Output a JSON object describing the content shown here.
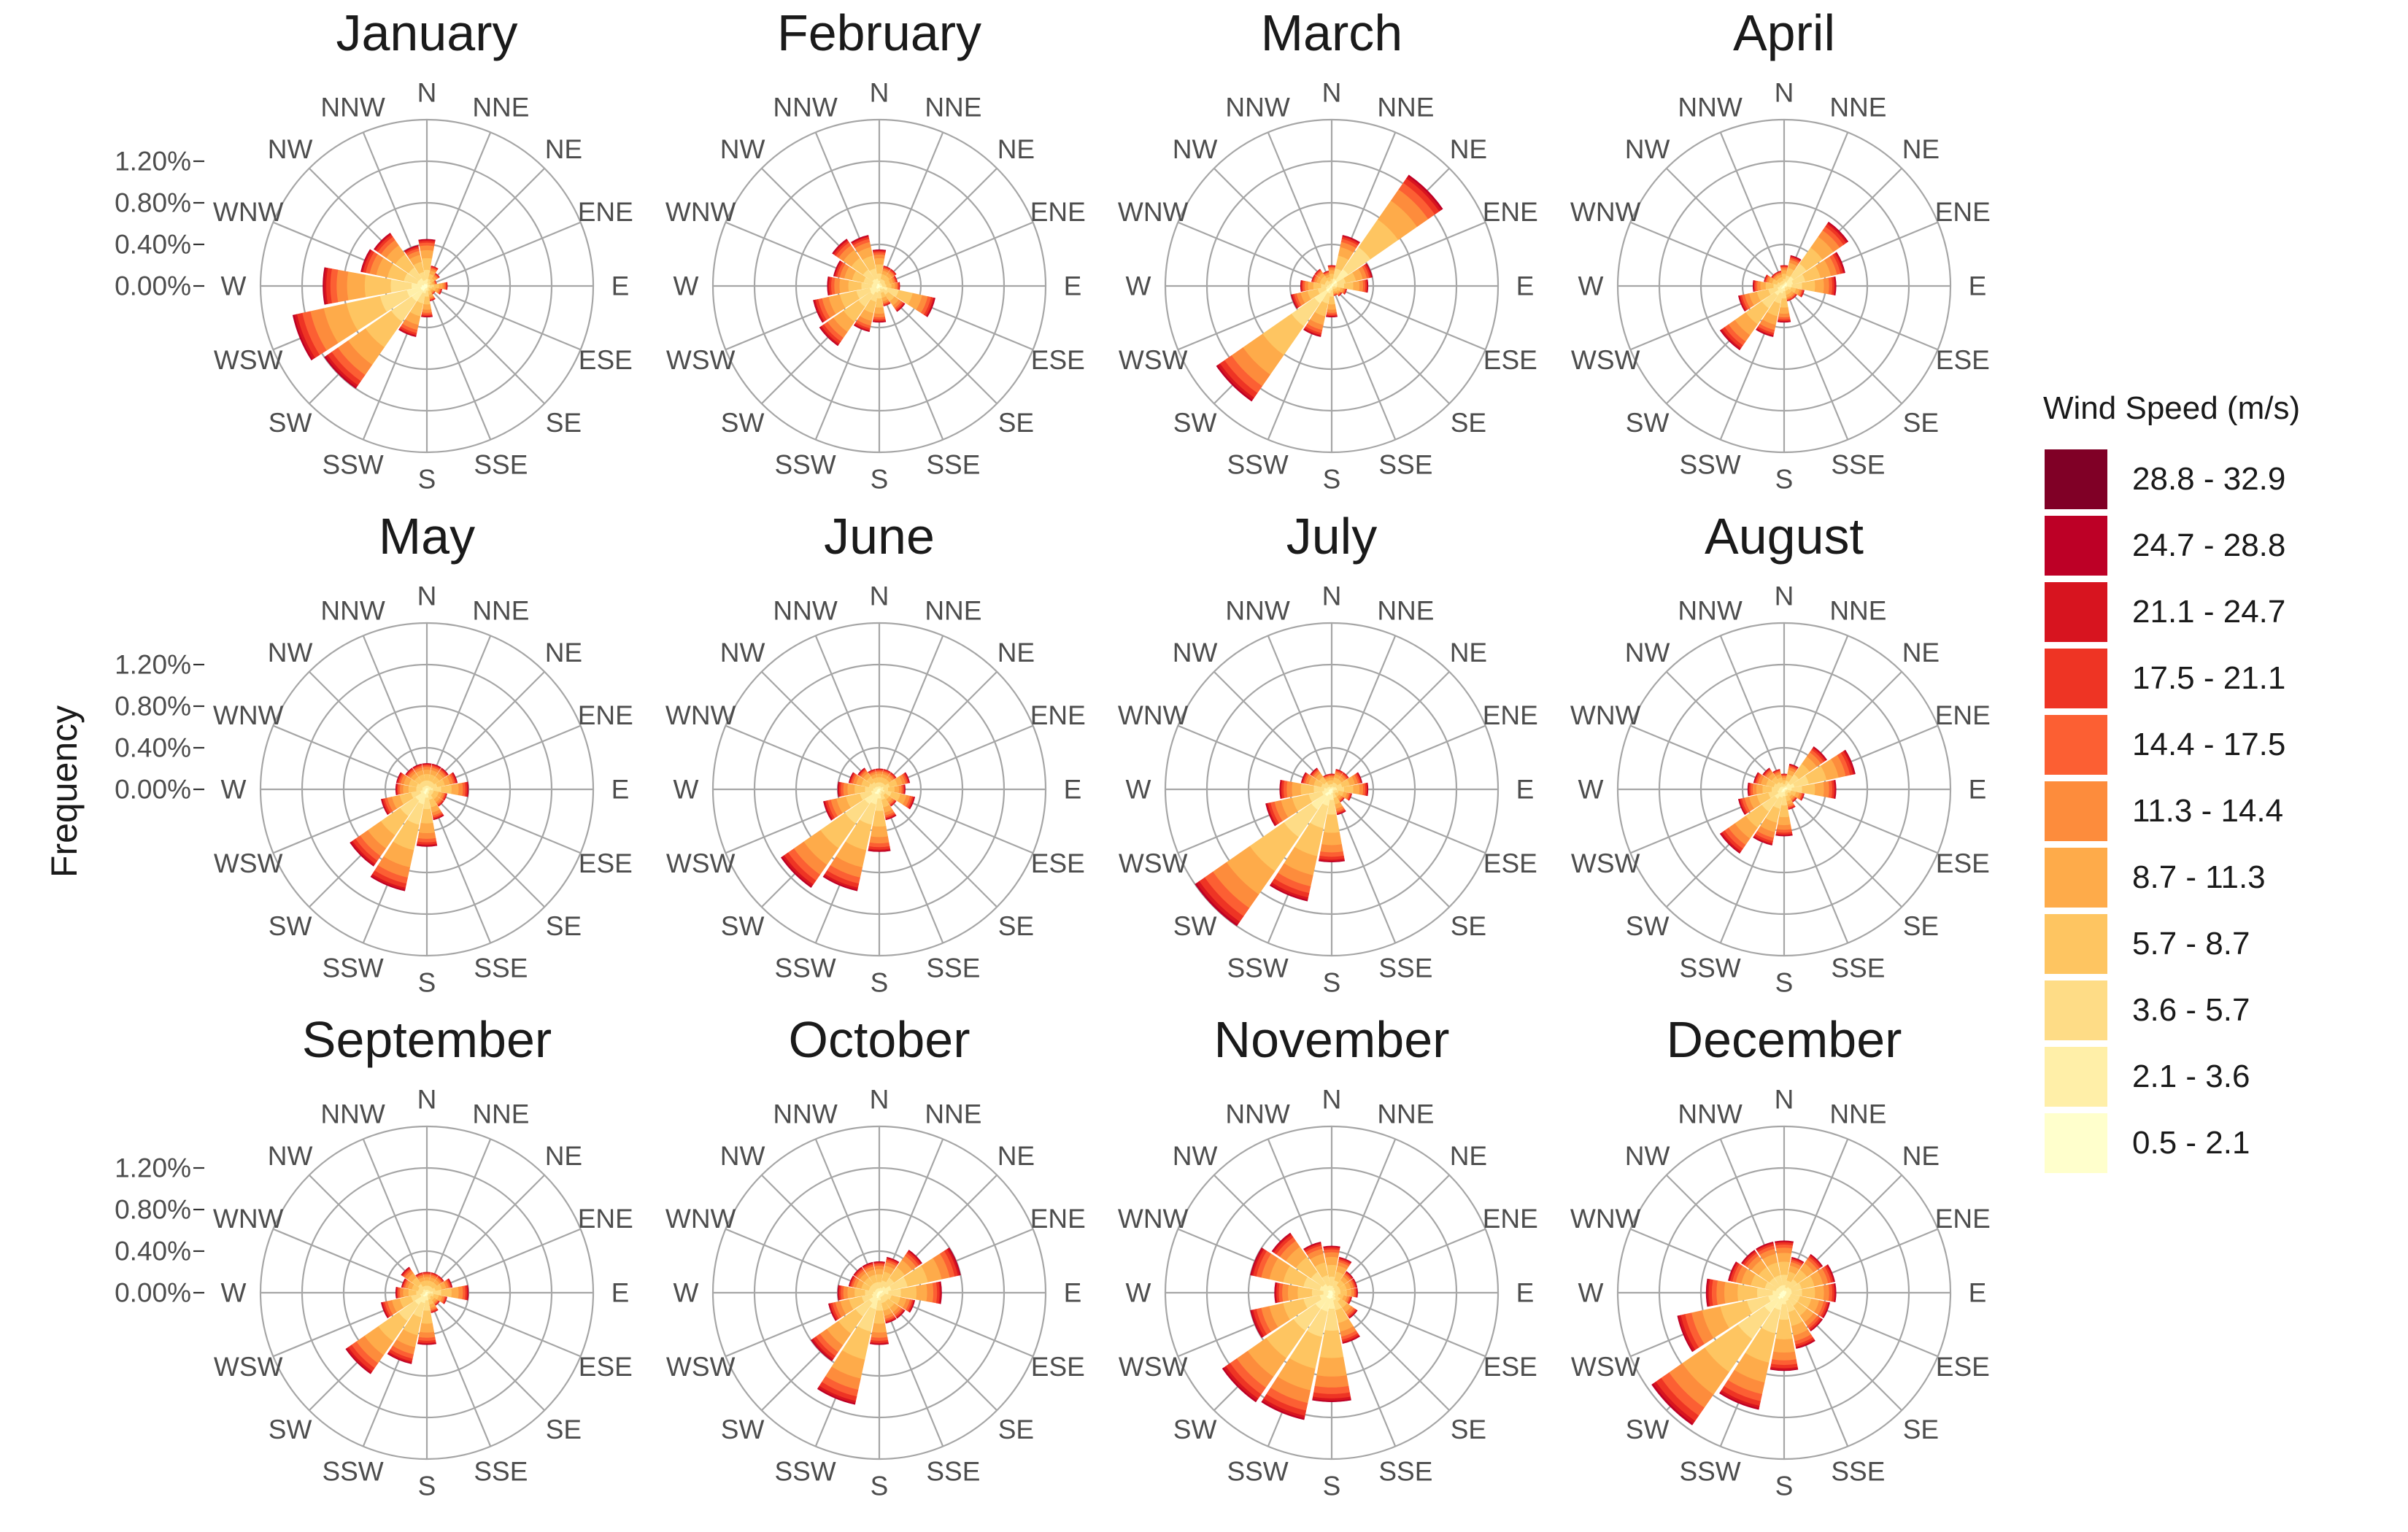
{
  "y_axis_title": "Frequency",
  "legend": {
    "title": "Wind Speed (m/s)",
    "bins": [
      {
        "label": "28.8 - 32.9",
        "color": "#800026"
      },
      {
        "label": "24.7 - 28.8",
        "color": "#bd0026"
      },
      {
        "label": "21.1 - 24.7",
        "color": "#d7141f"
      },
      {
        "label": "17.5 - 21.1",
        "color": "#ee3424"
      },
      {
        "label": "14.4 - 17.5",
        "color": "#fc5f33"
      },
      {
        "label": "11.3 - 14.4",
        "color": "#fd8c3c"
      },
      {
        "label": "8.7 - 11.3",
        "color": "#feab4a"
      },
      {
        "label": "5.7 - 8.7",
        "color": "#fec561"
      },
      {
        "label": "3.6 - 5.7",
        "color": "#fedc86"
      },
      {
        "label": "2.1 - 3.6",
        "color": "#ffefa8"
      },
      {
        "label": "0.5 - 2.1",
        "color": "#ffffcc"
      }
    ]
  },
  "chart_data": {
    "type": "polar-stacked-bar",
    "directions": [
      "N",
      "NNE",
      "NE",
      "ENE",
      "E",
      "ESE",
      "SE",
      "SSE",
      "S",
      "SSW",
      "SW",
      "WSW",
      "W",
      "WNW",
      "NW",
      "NNW"
    ],
    "radial_ticks": [
      "0.00%",
      "0.40%",
      "0.80%",
      "1.20%"
    ],
    "radial_range": [
      0,
      1.6
    ],
    "bins_low_to_high": [
      "0.5 - 2.1",
      "2.1 - 3.6",
      "3.6 - 5.7",
      "5.7 - 8.7",
      "8.7 - 11.3",
      "11.3 - 14.4",
      "14.4 - 17.5",
      "17.5 - 21.1",
      "21.1 - 24.7",
      "24.7 - 28.8",
      "28.8 - 32.9"
    ],
    "grid": true,
    "legend_position": "right",
    "panels": [
      {
        "title": "January",
        "totals": [
          0.45,
          0.2,
          0.15,
          0.1,
          0.2,
          0.15,
          0.1,
          0.15,
          0.3,
          0.5,
          1.2,
          1.32,
          1.0,
          0.65,
          0.62,
          0.4
        ]
      },
      {
        "title": "February",
        "totals": [
          0.35,
          0.2,
          0.2,
          0.18,
          0.2,
          0.55,
          0.3,
          0.2,
          0.35,
          0.45,
          0.7,
          0.65,
          0.5,
          0.45,
          0.55,
          0.5
        ]
      },
      {
        "title": "March",
        "totals": [
          0.2,
          0.5,
          1.3,
          0.4,
          0.35,
          0.15,
          0.12,
          0.1,
          0.3,
          0.5,
          1.35,
          0.4,
          0.3,
          0.2,
          0.2,
          0.15
        ]
      },
      {
        "title": "April",
        "totals": [
          0.2,
          0.3,
          0.75,
          0.6,
          0.5,
          0.2,
          0.15,
          0.15,
          0.35,
          0.5,
          0.75,
          0.45,
          0.3,
          0.2,
          0.15,
          0.15
        ]
      },
      {
        "title": "May",
        "totals": [
          0.25,
          0.25,
          0.25,
          0.3,
          0.4,
          0.2,
          0.2,
          0.3,
          0.55,
          1.0,
          0.9,
          0.45,
          0.3,
          0.3,
          0.25,
          0.25
        ]
      },
      {
        "title": "June",
        "totals": [
          0.2,
          0.2,
          0.2,
          0.3,
          0.25,
          0.35,
          0.2,
          0.3,
          0.6,
          1.0,
          1.15,
          0.55,
          0.4,
          0.3,
          0.25,
          0.2
        ]
      },
      {
        "title": "July",
        "totals": [
          0.15,
          0.2,
          0.2,
          0.3,
          0.35,
          0.2,
          0.15,
          0.25,
          0.7,
          1.1,
          1.6,
          0.65,
          0.5,
          0.3,
          0.25,
          0.15
        ]
      },
      {
        "title": "August",
        "totals": [
          0.15,
          0.25,
          0.5,
          0.7,
          0.5,
          0.2,
          0.15,
          0.2,
          0.45,
          0.55,
          0.75,
          0.45,
          0.35,
          0.3,
          0.25,
          0.2
        ]
      },
      {
        "title": "September",
        "totals": [
          0.2,
          0.2,
          0.2,
          0.25,
          0.4,
          0.2,
          0.15,
          0.2,
          0.5,
          0.7,
          0.95,
          0.45,
          0.3,
          0.25,
          0.3,
          0.2
        ]
      },
      {
        "title": "October",
        "totals": [
          0.3,
          0.35,
          0.5,
          0.8,
          0.6,
          0.35,
          0.3,
          0.3,
          0.5,
          1.1,
          0.8,
          0.5,
          0.4,
          0.3,
          0.3,
          0.3
        ]
      },
      {
        "title": "November",
        "totals": [
          0.45,
          0.35,
          0.25,
          0.25,
          0.25,
          0.2,
          0.3,
          0.5,
          1.05,
          1.25,
          1.28,
          0.8,
          0.55,
          0.8,
          0.7,
          0.5
        ]
      },
      {
        "title": "December",
        "totals": [
          0.5,
          0.35,
          0.45,
          0.5,
          0.5,
          0.45,
          0.45,
          0.55,
          0.75,
          1.15,
          1.55,
          1.05,
          0.75,
          0.55,
          0.5,
          0.5
        ]
      }
    ]
  }
}
